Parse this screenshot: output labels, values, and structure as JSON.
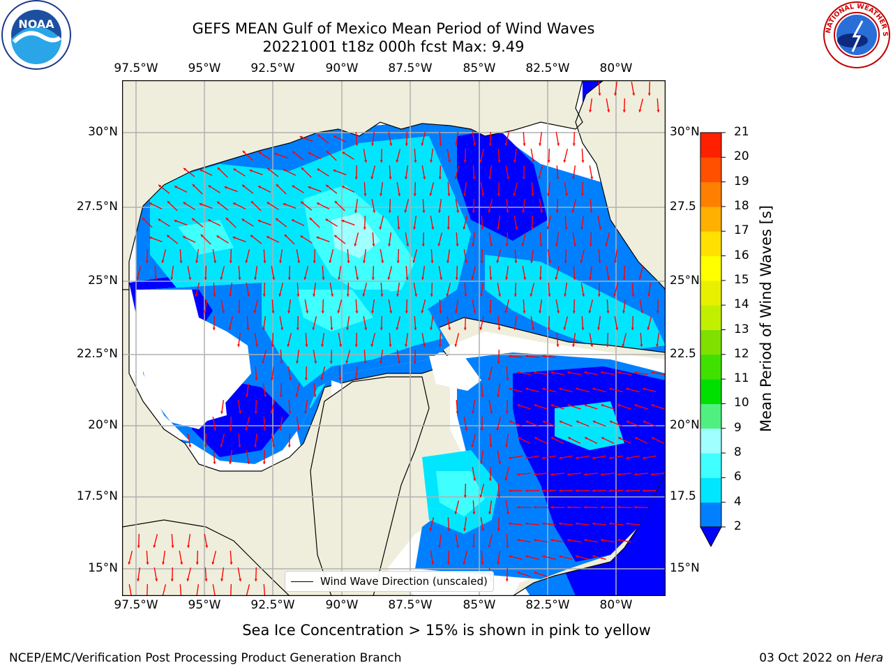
{
  "title": {
    "line1": "GEFS MEAN Gulf of Mexico Mean Period of Wind Waves",
    "line2": "20221001 t18z 000h fcst   Max: 9.49"
  },
  "axes": {
    "lon_labels": [
      "97.5°W",
      "95°W",
      "92.5°W",
      "90°W",
      "87.5°W",
      "85°W",
      "82.5°W",
      "80°W"
    ],
    "lat_labels_left": [
      "30°N",
      "27.5°N",
      "25°N",
      "22.5°N",
      "20°N",
      "17.5°N",
      "15°N"
    ],
    "lat_labels_right": [
      "30°N",
      "27.5",
      "25°N",
      "22.5",
      "20°N",
      "17.5",
      "15°N"
    ]
  },
  "legend": {
    "label": "Wind Wave Direction (unscaled)"
  },
  "colorbar": {
    "title": "Mean Period of Wind Waves [s]",
    "ticks": [
      "2",
      "4",
      "6",
      "8",
      "9",
      "10",
      "11",
      "12",
      "13",
      "14",
      "15",
      "16",
      "17",
      "18",
      "19",
      "20",
      "21"
    ],
    "colors": [
      "#0080ff",
      "#00e6ff",
      "#40ffff",
      "#a0ffff",
      "#50f080",
      "#00e000",
      "#40e000",
      "#80e000",
      "#c0f000",
      "#e8f000",
      "#ffff00",
      "#ffe000",
      "#ffb000",
      "#ff8000",
      "#ff5000",
      "#ff2000"
    ],
    "under_color": "#0000ff"
  },
  "map_colors": {
    "land": "#efeedc",
    "no_data": "#ffffff",
    "period_2_4": "#0080ff",
    "period_under_2": "#0000ff",
    "period_4_6": "#00e6ff",
    "period_6_8": "#40ffff",
    "period_8_9": "#a0ffff",
    "arrow": "#ff0000",
    "grid": "#b0b0b0"
  },
  "note": "Sea Ice Concentration > 15% is shown in pink to yellow",
  "footer": {
    "left": "NCEP/EMC/Verification Post Processing Product Generation Branch",
    "right_text": "03 Oct 2022 on ",
    "right_italic": "Hera"
  },
  "logos": {
    "left": "NOAA",
    "right": "NATIONAL WEATHER SERVICE"
  },
  "icons": {
    "left_logo": "noaa-logo-icon",
    "right_logo": "nws-logo-icon"
  }
}
